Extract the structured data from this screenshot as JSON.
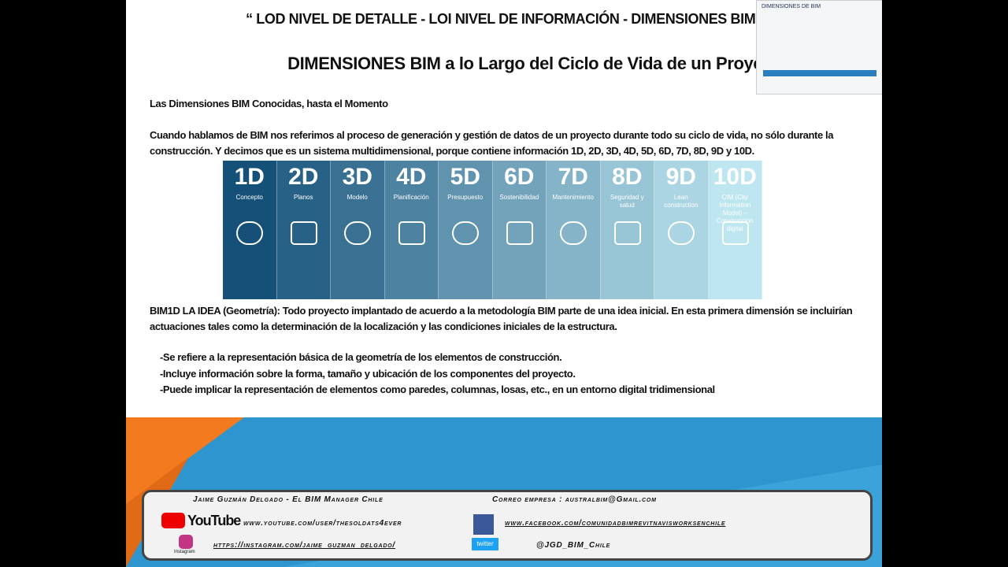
{
  "header": {
    "title": "“ LOD NIVEL DE DETALLE - LOI NIVEL DE INFORMACIÓN - DIMENSIONES BIM”",
    "subtitle": "DIMENSIONES BIM a lo Largo del Ciclo de Vida de un Proyecto"
  },
  "thumbnail": {
    "title": "DIMENSIONES DE BIM"
  },
  "body": {
    "heading": "Las Dimensiones BIM Conocidas, hasta el Momento",
    "intro": "Cuando hablamos de BIM nos referimos al proceso de generación y gestión de datos de un proyecto durante todo su ciclo de vida, no sólo durante la construcción.  Y decimos que es un sistema multidimensional, porque contiene información 1D, 2D, 3D, 4D, 5D, 6D, 7D, 8D, 9D y 10D.",
    "dimensions": [
      {
        "label": "1D",
        "name": "Concepto"
      },
      {
        "label": "2D",
        "name": "Planos"
      },
      {
        "label": "3D",
        "name": "Modelo"
      },
      {
        "label": "4D",
        "name": "Planificación"
      },
      {
        "label": "5D",
        "name": "Presupuesto"
      },
      {
        "label": "6D",
        "name": "Sostenibilidad"
      },
      {
        "label": "7D",
        "name": "Mantenimiento"
      },
      {
        "label": "8D",
        "name": "Seguridad y salud"
      },
      {
        "label": "9D",
        "name": "Lean construction"
      },
      {
        "label": "10D",
        "name": "CIM (City Information Model) – Construcción digital"
      }
    ],
    "paragraph": "BIM1D LA IDEA (Geometría): Todo proyecto implantado de acuerdo a la metodología BIM parte de una idea inicial. En esta primera dimensión se incluirían actuaciones tales como la determinación de la localización y las condiciones iniciales de la estructura.",
    "bullets": [
      "-Se refiere a la representación básica de la geometría de los elementos  de construcción.",
      "-Incluye información sobre la forma, tamaño y ubicación de los componentes del proyecto.",
      "-Puede implicar la representación de elementos como paredes, columnas, losas, etc., en un entorno digital tridimensional"
    ]
  },
  "footer": {
    "author": "Jaime Guzmán Delgado - El BIM Manager Chile",
    "email": "Correo empresa : australbim@Gmail.com",
    "youtube_logo": "YouTube",
    "youtube": "www.youtube.com/user/thesoldats4ever",
    "facebook": "www.facebook.com/comunidadbimrevitnavisworksenchile",
    "instagram_logo": "Instagram",
    "instagram": "https://instagram.com/jaime_guzman_delgado/",
    "twitter_logo": "twitter",
    "twitter": "@JGD_BIM_Chile"
  }
}
